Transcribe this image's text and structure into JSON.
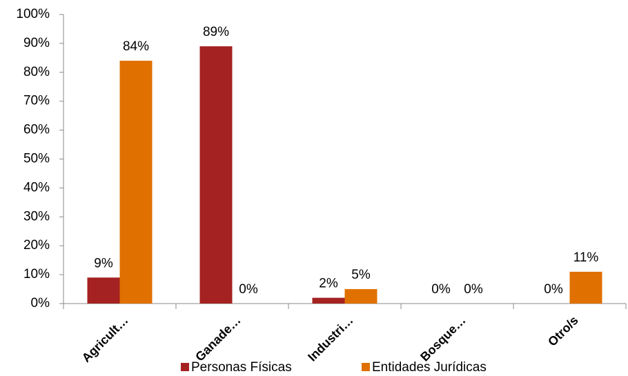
{
  "chart_data": {
    "type": "bar",
    "categories": [
      "Agricult…",
      "Ganade…",
      "Industri…",
      "Bosque…",
      "Otro/s"
    ],
    "series": [
      {
        "name": "Personas Físicas",
        "color": "#a52222",
        "values": [
          9,
          89,
          2,
          0,
          0
        ],
        "value_labels": [
          "9%",
          "89%",
          "2%",
          "0%",
          "0%"
        ]
      },
      {
        "name": "Entidades Jurídicas",
        "color": "#e07000",
        "values": [
          84,
          0,
          5,
          0,
          11
        ],
        "value_labels": [
          "84%",
          "0%",
          "5%",
          "0%",
          "11%"
        ]
      }
    ],
    "ylim": [
      0,
      100
    ],
    "yticks": [
      {
        "value": 0,
        "label": "0%"
      },
      {
        "value": 10,
        "label": "10%"
      },
      {
        "value": 20,
        "label": "20%"
      },
      {
        "value": 30,
        "label": "30%"
      },
      {
        "value": 40,
        "label": "40%"
      },
      {
        "value": 50,
        "label": "50%"
      },
      {
        "value": 60,
        "label": "60%"
      },
      {
        "value": 70,
        "label": "70%"
      },
      {
        "value": 80,
        "label": "80%"
      },
      {
        "value": 90,
        "label": "90%"
      },
      {
        "value": 100,
        "label": "100%"
      }
    ],
    "grid": false,
    "legend": "bottom"
  }
}
